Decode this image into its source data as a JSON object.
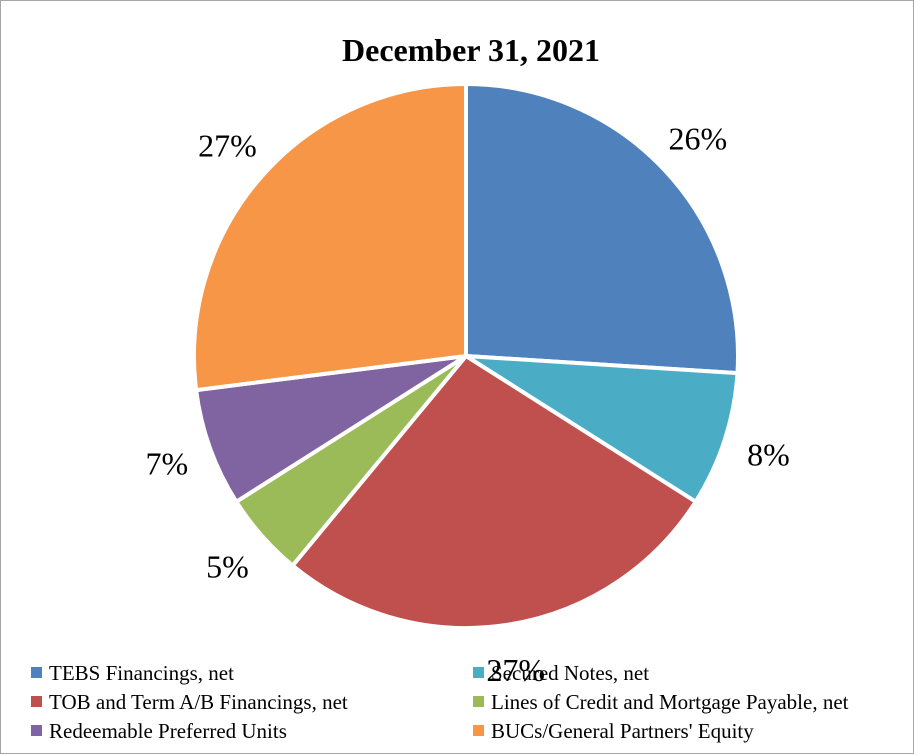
{
  "chart_data": {
    "type": "pie",
    "title": "December 31, 2021",
    "series": [
      {
        "categories": [
          "TEBS Financings, net",
          "Secured Notes, net",
          "TOB and Term A/B Financings, net",
          "Lines of Credit and Mortgage Payable, net",
          "Redeemable Preferred Units",
          "BUCs/General Partners' Equity"
        ],
        "values": [
          26,
          8,
          27,
          5,
          7,
          27
        ],
        "labels": [
          "26%",
          "8%",
          "27%",
          "5%",
          "7%",
          "27%"
        ]
      }
    ],
    "colors": [
      "#4f81bd",
      "#4bacc6",
      "#c0504d",
      "#9bbb59",
      "#8064a2",
      "#f79646"
    ],
    "start_angle_deg": 0,
    "direction": "clockwise",
    "legend_position": "bottom",
    "slice_border_color": "#ffffff"
  }
}
